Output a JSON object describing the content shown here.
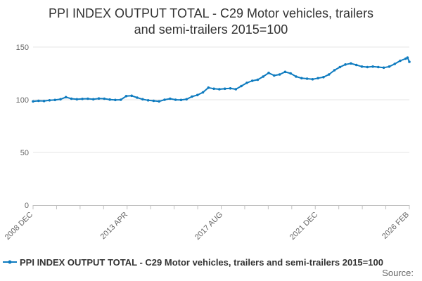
{
  "chart_data": {
    "type": "line",
    "title": "PPI INDEX OUTPUT TOTAL - C29 Motor vehicles, trailers and semi-trailers 2015=100",
    "title_lines": [
      "PPI INDEX OUTPUT TOTAL - C29 Motor vehicles, trailers",
      "and semi-trailers 2015=100"
    ],
    "xlabel": "",
    "ylabel": "",
    "ylim": [
      0,
      150
    ],
    "yticks": [
      0,
      50,
      100,
      150
    ],
    "xlim": [
      "2008 DEC",
      "2026 FEB"
    ],
    "xtick_labels": [
      "2008 DEC",
      "2013 APR",
      "2017 AUG",
      "2021 DEC",
      "2026 FEB"
    ],
    "grid": true,
    "legend_position": "bottom",
    "series": [
      {
        "name": "PPI INDEX OUTPUT TOTAL - C29 Motor vehicles, trailers and semi-trailers 2015=100",
        "color": "#0e7bbf",
        "points": [
          [
            "2008 DEC",
            98.5
          ],
          [
            "2009 MAR",
            99.0
          ],
          [
            "2009 JUN",
            98.8
          ],
          [
            "2009 SEP",
            99.5
          ],
          [
            "2009 DEC",
            99.8
          ],
          [
            "2010 MAR",
            100.5
          ],
          [
            "2010 JUN",
            102.5
          ],
          [
            "2010 SEP",
            101.0
          ],
          [
            "2010 DEC",
            100.5
          ],
          [
            "2011 MAR",
            100.8
          ],
          [
            "2011 JUN",
            101.0
          ],
          [
            "2011 SEP",
            100.5
          ],
          [
            "2011 DEC",
            101.2
          ],
          [
            "2012 MAR",
            101.0
          ],
          [
            "2012 JUN",
            100.2
          ],
          [
            "2012 SEP",
            99.8
          ],
          [
            "2012 DEC",
            100.0
          ],
          [
            "2013 MAR",
            103.5
          ],
          [
            "2013 JUN",
            103.8
          ],
          [
            "2013 SEP",
            102.0
          ],
          [
            "2013 DEC",
            100.5
          ],
          [
            "2014 MAR",
            99.5
          ],
          [
            "2014 JUN",
            99.0
          ],
          [
            "2014 SEP",
            98.5
          ],
          [
            "2014 DEC",
            100.0
          ],
          [
            "2015 MAR",
            101.0
          ],
          [
            "2015 JUN",
            100.0
          ],
          [
            "2015 SEP",
            99.8
          ],
          [
            "2015 DEC",
            100.5
          ],
          [
            "2016 MAR",
            103.0
          ],
          [
            "2016 JUN",
            104.5
          ],
          [
            "2016 SEP",
            107.0
          ],
          [
            "2016 DEC",
            111.5
          ],
          [
            "2017 MAR",
            110.5
          ],
          [
            "2017 JUN",
            110.0
          ],
          [
            "2017 SEP",
            110.5
          ],
          [
            "2017 DEC",
            110.8
          ],
          [
            "2018 MAR",
            110.0
          ],
          [
            "2018 JUN",
            113.0
          ],
          [
            "2018 SEP",
            116.0
          ],
          [
            "2018 DEC",
            118.0
          ],
          [
            "2019 MAR",
            119.0
          ],
          [
            "2019 JUN",
            122.0
          ],
          [
            "2019 SEP",
            125.5
          ],
          [
            "2019 DEC",
            123.0
          ],
          [
            "2020 MAR",
            124.0
          ],
          [
            "2020 JUN",
            126.5
          ],
          [
            "2020 SEP",
            125.0
          ],
          [
            "2020 DEC",
            122.0
          ],
          [
            "2021 MAR",
            120.5
          ],
          [
            "2021 JUN",
            120.0
          ],
          [
            "2021 SEP",
            119.5
          ],
          [
            "2021 DEC",
            120.5
          ],
          [
            "2022 MAR",
            121.5
          ],
          [
            "2022 JUN",
            124.0
          ],
          [
            "2022 SEP",
            128.0
          ],
          [
            "2022 DEC",
            131.0
          ],
          [
            "2023 MAR",
            133.5
          ],
          [
            "2023 JUN",
            134.5
          ],
          [
            "2023 SEP",
            133.0
          ],
          [
            "2023 DEC",
            131.5
          ],
          [
            "2024 MAR",
            131.0
          ],
          [
            "2024 JUN",
            131.5
          ],
          [
            "2024 SEP",
            131.0
          ],
          [
            "2024 DEC",
            130.5
          ],
          [
            "2025 MAR",
            131.5
          ],
          [
            "2025 JUN",
            134.0
          ],
          [
            "2025 SEP",
            137.0
          ],
          [
            "2025 DEC",
            139.0
          ],
          [
            "2026 JAN",
            140.0
          ],
          [
            "2026 FEB",
            136.0
          ]
        ]
      }
    ]
  },
  "footer": {
    "source_label": "Source:"
  }
}
